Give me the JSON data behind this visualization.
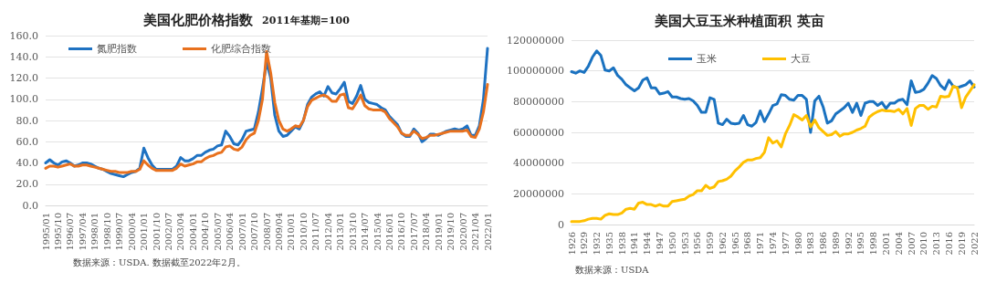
{
  "chart_data": [
    {
      "type": "line",
      "title": "美国化肥价格指数",
      "subtitle": "2011年基期=100",
      "categories": [
        "1995/01",
        null,
        null,
        "1995/10",
        null,
        null,
        "1996/07",
        null,
        null,
        "1997/04",
        null,
        null,
        "1998/01",
        null,
        null,
        "1998/10",
        null,
        null,
        "1999/07",
        null,
        null,
        "2000/04",
        null,
        null,
        "2001/01",
        null,
        null,
        "2001/10",
        null,
        null,
        "2002/07",
        null,
        null,
        "2003/04",
        null,
        null,
        "2004/01",
        null,
        null,
        "2004/10",
        null,
        null,
        "2005/07",
        null,
        null,
        "2006/04",
        null,
        null,
        "2007/01",
        null,
        null,
        "2007/10",
        null,
        null,
        "2008/07",
        null,
        null,
        "2009/04",
        null,
        null,
        "2010/01",
        null,
        null,
        "2010/10",
        null,
        null,
        "2011/07",
        null,
        null,
        "2012/04",
        null,
        null,
        "2013/01",
        null,
        null,
        "2013/10",
        null,
        null,
        "2014/07",
        null,
        null,
        "2015/04",
        null,
        null,
        "2016/01",
        null,
        null,
        "2016/10",
        null,
        null,
        "2017/07",
        null,
        null,
        "2018/04",
        null,
        null,
        "2019/01",
        null,
        null,
        "2019/10",
        null,
        null,
        "2020/07",
        null,
        null,
        "2021/04",
        null,
        null,
        "2022/01"
      ],
      "series": [
        {
          "name": "氮肥指数",
          "color": "#1f72c2",
          "values": [
            40,
            43,
            40,
            38,
            41,
            42,
            40,
            37,
            38,
            40,
            40,
            39,
            37,
            35,
            34,
            32,
            30,
            29,
            28,
            27,
            29,
            31,
            32,
            35,
            54,
            45,
            38,
            34,
            34,
            34,
            34,
            34,
            37,
            45,
            42,
            42,
            44,
            47,
            47,
            50,
            52,
            53,
            56,
            57,
            70,
            65,
            58,
            57,
            62,
            70,
            71,
            72,
            88,
            110,
            135,
            120,
            85,
            70,
            65,
            66,
            70,
            74,
            72,
            80,
            95,
            102,
            105,
            107,
            103,
            112,
            106,
            105,
            110,
            116,
            98,
            96,
            103,
            113,
            100,
            97,
            96,
            95,
            92,
            90,
            84,
            80,
            76,
            68,
            65,
            65,
            72,
            68,
            60,
            63,
            67,
            67,
            66,
            68,
            70,
            71,
            72,
            71,
            72,
            75,
            66,
            66,
            75,
            100,
            148
          ]
        },
        {
          "name": "化肥综合指数",
          "color": "#e8711e",
          "values": [
            35,
            37,
            37,
            36,
            37,
            38,
            39,
            37,
            37,
            38,
            38,
            37,
            36,
            35,
            34,
            33,
            32,
            32,
            31,
            31,
            31,
            32,
            32,
            34,
            42,
            38,
            35,
            33,
            33,
            33,
            33,
            33,
            35,
            39,
            37,
            38,
            39,
            41,
            41,
            44,
            46,
            47,
            49,
            50,
            55,
            56,
            53,
            52,
            55,
            62,
            66,
            68,
            80,
            100,
            145,
            125,
            97,
            80,
            72,
            70,
            72,
            75,
            74,
            80,
            93,
            99,
            101,
            103,
            104,
            102,
            98,
            98,
            104,
            105,
            92,
            91,
            97,
            104,
            94,
            91,
            90,
            90,
            90,
            88,
            82,
            78,
            74,
            68,
            66,
            66,
            70,
            67,
            63,
            64,
            66,
            66,
            67,
            68,
            69,
            70,
            70,
            70,
            70,
            71,
            65,
            64,
            72,
            88,
            114
          ]
        }
      ],
      "ylim": [
        0,
        160
      ],
      "yticks": [
        {
          "value": 0,
          "label": "0.0"
        },
        {
          "value": 20,
          "label": "20.0"
        },
        {
          "value": 40,
          "label": "40.0"
        },
        {
          "value": 60,
          "label": "60.0"
        },
        {
          "value": 80,
          "label": "80.0"
        },
        {
          "value": 100,
          "label": "100.0"
        },
        {
          "value": 120,
          "label": "120.0"
        },
        {
          "value": 140,
          "label": "140.0"
        },
        {
          "value": 160,
          "label": "160.0"
        }
      ],
      "grid": "y",
      "legend": "top left",
      "marker": "none",
      "line_style": "solid",
      "annotations": [
        "数据来源：USDA. 数据截至2022年2月。"
      ]
    },
    {
      "type": "line",
      "title": "美国大豆玉米种植面积 英亩",
      "categories": [
        "1926",
        null,
        null,
        "1929",
        null,
        null,
        "1932",
        null,
        null,
        "1935",
        null,
        null,
        "1938",
        null,
        null,
        "1941",
        null,
        null,
        "1944",
        null,
        null,
        "1947",
        null,
        null,
        "1950",
        null,
        null,
        "1953",
        null,
        null,
        "1956",
        null,
        null,
        "1959",
        null,
        null,
        "1962",
        null,
        null,
        "1965",
        null,
        null,
        "1968",
        null,
        null,
        "1971",
        null,
        null,
        "1974",
        null,
        null,
        "1977",
        null,
        null,
        "1980",
        null,
        null,
        "1983",
        null,
        null,
        "1986",
        null,
        null,
        "1989",
        null,
        null,
        "1992",
        null,
        null,
        "1995",
        null,
        null,
        "1998",
        null,
        null,
        "2001",
        null,
        null,
        "2004",
        null,
        null,
        "2007",
        null,
        null,
        "2010",
        null,
        null,
        "2013",
        null,
        null,
        "2016",
        null,
        null,
        "2019",
        null,
        null,
        "2022"
      ],
      "series": [
        {
          "name": "玉米",
          "color": "#1a72c0",
          "values": [
            99500000,
            98500000,
            100000000,
            99000000,
            103000000,
            109000000,
            113000000,
            110000000,
            100500000,
            100000000,
            102000000,
            97000000,
            94500000,
            91000000,
            89000000,
            87000000,
            89000000,
            94000000,
            95500000,
            89000000,
            89000000,
            85000000,
            85500000,
            86500000,
            83000000,
            83000000,
            82000000,
            81500000,
            82000000,
            80500000,
            77500000,
            73000000,
            73000000,
            82500000,
            81500000,
            66000000,
            65000000,
            68500000,
            66000000,
            65500000,
            66000000,
            71000000,
            65000000,
            64000000,
            66500000,
            74000000,
            67000000,
            72000000,
            77500000,
            78500000,
            84500000,
            84000000,
            81500000,
            81000000,
            84000000,
            84000000,
            81500000,
            60000000,
            80500000,
            83500000,
            76500000,
            66000000,
            67500000,
            72000000,
            74000000,
            76000000,
            79000000,
            73000000,
            79000000,
            71000000,
            79000000,
            80000000,
            80000000,
            77500000,
            79500000,
            75500000,
            79000000,
            79000000,
            81000000,
            81500000,
            78000000,
            93500000,
            86000000,
            86500000,
            88000000,
            92000000,
            97000000,
            95000000,
            90500000,
            88000000,
            94000000,
            90000000,
            89000000,
            90000000,
            91000000,
            93500000,
            89500000
          ]
        },
        {
          "name": "大豆",
          "color": "#ffc000",
          "values": [
            2000000,
            2000000,
            2000000,
            2500000,
            3500000,
            4000000,
            4000000,
            3500000,
            6000000,
            7000000,
            6500000,
            6500000,
            7500000,
            10000000,
            10500000,
            10000000,
            14000000,
            14500000,
            13000000,
            13000000,
            12000000,
            13000000,
            12000000,
            12000000,
            15000000,
            15500000,
            16000000,
            16500000,
            18500000,
            19500000,
            22000000,
            22000000,
            25500000,
            23500000,
            24500000,
            28000000,
            28500000,
            29500000,
            31500000,
            35000000,
            37500000,
            40500000,
            42000000,
            42000000,
            43000000,
            43500000,
            47000000,
            56500000,
            53000000,
            54500000,
            50500000,
            59000000,
            64500000,
            71500000,
            70000000,
            68000000,
            71000000,
            63500000,
            68000000,
            63000000,
            60500000,
            58000000,
            58500000,
            60500000,
            57500000,
            59000000,
            59000000,
            60000000,
            61500000,
            62500000,
            64000000,
            70000000,
            72000000,
            73500000,
            74500000,
            74000000,
            74000000,
            73500000,
            75000000,
            72000000,
            75500000,
            64500000,
            75500000,
            77500000,
            77500000,
            75000000,
            77000000,
            76500000,
            83500000,
            83000000,
            83500000,
            90000000,
            89000000,
            76000000,
            83000000,
            87000000,
            91000000
          ]
        }
      ],
      "ylim": [
        0,
        120000000
      ],
      "yticks": [
        0,
        20000000,
        40000000,
        60000000,
        80000000,
        100000000,
        120000000
      ],
      "grid": "y",
      "legend": "top",
      "marker": "none",
      "line_style": "solid",
      "annotations": [
        "数据来源：USDA"
      ]
    }
  ]
}
